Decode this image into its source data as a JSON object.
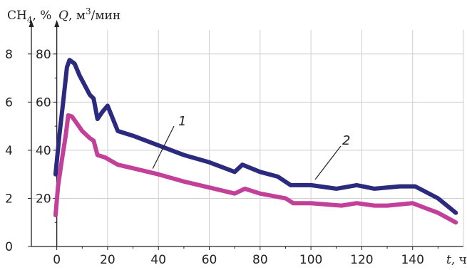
{
  "chart_data": {
    "type": "line",
    "x_axis": {
      "label_var": "t",
      "label_unit": ", ч",
      "range": [
        -10,
        160
      ],
      "ticks": [
        0,
        20,
        40,
        60,
        80,
        100,
        120,
        140
      ]
    },
    "y_axis_left": {
      "label": "CH",
      "label_sub": "4",
      "label_unit": ", %",
      "range": [
        0,
        9
      ],
      "ticks": [
        0,
        2,
        4,
        6,
        8
      ]
    },
    "y_axis_q": {
      "label_var": "Q",
      "label_unit": ", м",
      "label_sup": "3",
      "label_tail": "/мин",
      "range": [
        0,
        90
      ],
      "ticks": [
        20,
        40,
        60,
        80
      ]
    },
    "grid": true,
    "series": [
      {
        "name": "1",
        "axis": "left",
        "color": "#c2409a",
        "points": [
          [
            -0.5,
            1.3
          ],
          [
            0.5,
            2.5
          ],
          [
            2,
            3.6
          ],
          [
            3.5,
            4.6
          ],
          [
            4.5,
            5.45
          ],
          [
            6,
            5.4
          ],
          [
            8,
            5.1
          ],
          [
            10,
            4.8
          ],
          [
            13,
            4.5
          ],
          [
            14.5,
            4.4
          ],
          [
            16,
            3.8
          ],
          [
            19,
            3.7
          ],
          [
            24,
            3.4
          ],
          [
            30,
            3.25
          ],
          [
            40,
            3.0
          ],
          [
            50,
            2.7
          ],
          [
            60,
            2.45
          ],
          [
            70,
            2.2
          ],
          [
            74,
            2.4
          ],
          [
            80,
            2.2
          ],
          [
            90,
            2.0
          ],
          [
            93,
            1.8
          ],
          [
            100,
            1.8
          ],
          [
            112,
            1.7
          ],
          [
            118,
            1.8
          ],
          [
            125,
            1.7
          ],
          [
            130,
            1.7
          ],
          [
            140,
            1.8
          ],
          [
            145,
            1.6
          ],
          [
            150,
            1.4
          ],
          [
            157,
            1.0
          ]
        ]
      },
      {
        "name": "2",
        "axis": "left",
        "color": "#2b2a7f",
        "points": [
          [
            -0.5,
            3.0
          ],
          [
            1,
            4.6
          ],
          [
            2.5,
            6.0
          ],
          [
            4,
            7.45
          ],
          [
            5,
            7.75
          ],
          [
            7,
            7.6
          ],
          [
            9,
            7.1
          ],
          [
            11,
            6.7
          ],
          [
            13,
            6.3
          ],
          [
            14.5,
            6.15
          ],
          [
            16,
            5.3
          ],
          [
            18,
            5.6
          ],
          [
            20,
            5.85
          ],
          [
            24,
            4.8
          ],
          [
            30,
            4.6
          ],
          [
            40,
            4.2
          ],
          [
            50,
            3.8
          ],
          [
            60,
            3.5
          ],
          [
            70,
            3.1
          ],
          [
            73,
            3.4
          ],
          [
            80,
            3.1
          ],
          [
            87,
            2.9
          ],
          [
            92,
            2.55
          ],
          [
            100,
            2.55
          ],
          [
            110,
            2.4
          ],
          [
            118,
            2.55
          ],
          [
            125,
            2.4
          ],
          [
            135,
            2.5
          ],
          [
            141,
            2.5
          ],
          [
            150,
            2.0
          ],
          [
            157,
            1.4
          ]
        ]
      }
    ],
    "annotations": [
      {
        "text": "1",
        "series": "1"
      },
      {
        "text": "2",
        "series": "2"
      }
    ]
  }
}
